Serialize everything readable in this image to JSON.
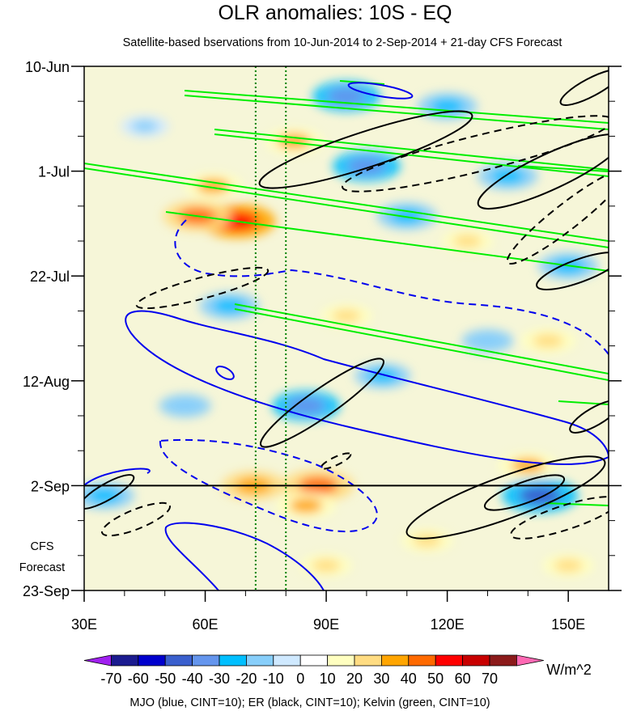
{
  "chart_data": {
    "type": "heatmap",
    "title": "OLR anomalies: 10S - EQ",
    "subtitle": "Satellite-based bservations from 10-Jun-2014 to 2-Sep-2014 + 21-day CFS Forecast",
    "x_ticks": [
      "30E",
      "60E",
      "90E",
      "120E",
      "150E"
    ],
    "x_tick_values": [
      30,
      60,
      90,
      120,
      150
    ],
    "xlim": [
      30,
      160
    ],
    "y_ticks": [
      "10-Jun",
      "1-Jul",
      "22-Jul",
      "12-Aug",
      "2-Sep",
      "23-Sep"
    ],
    "y_tick_days": [
      0,
      21,
      42,
      63,
      84,
      105
    ],
    "observation_end": "2-Sep",
    "observation_end_day": 84,
    "forecast_label_line1": "CFS",
    "forecast_label_line2": "Forecast",
    "reference_longitudes": [
      72.5,
      80
    ],
    "units": "W/m^2",
    "colorbar_values": [
      -70,
      -60,
      -50,
      -40,
      -30,
      -20,
      -10,
      0,
      10,
      20,
      30,
      40,
      50,
      60,
      70
    ],
    "colorbar_labels": [
      "-70",
      "-60",
      "-50",
      "-40",
      "-30",
      "-20",
      "-10",
      "0",
      "10",
      "20",
      "30",
      "40",
      "50",
      "60",
      "70"
    ],
    "colorbar_colors": [
      "#a020f0",
      "#1b1b8f",
      "#0000cd",
      "#3a5fcd",
      "#6495ed",
      "#00bfff",
      "#87cefa",
      "#cfe9ff",
      "#ffffff",
      "#ffffc0",
      "#ffdc82",
      "#ffa500",
      "#ff6a00",
      "#ff0000",
      "#c80000",
      "#8b1a1a",
      "#ff69b4"
    ],
    "footer": "MJO (blue, CINT=10); ER (black, CINT=10); Kelvin (green, CINT=10)",
    "contour_series": [
      {
        "name": "MJO",
        "color": "#0000ff",
        "cint": 10
      },
      {
        "name": "ER",
        "color": "#000000",
        "cint": 10
      },
      {
        "name": "Kelvin",
        "color": "#00ee00",
        "cint": 10
      }
    ],
    "anomaly_features": [
      {
        "lon": 68,
        "day": 31,
        "value": 50
      },
      {
        "lon": 58,
        "day": 30,
        "value": 40
      },
      {
        "lon": 88,
        "day": 84,
        "value": 45
      },
      {
        "lon": 72,
        "day": 84,
        "value": 35
      },
      {
        "lon": 85,
        "day": 88,
        "value": 30
      },
      {
        "lon": 62,
        "day": 24,
        "value": 30
      },
      {
        "lon": 82,
        "day": 15,
        "value": 30
      },
      {
        "lon": 90,
        "day": 100,
        "value": 20
      },
      {
        "lon": 140,
        "day": 80,
        "value": 30
      },
      {
        "lon": 115,
        "day": 95,
        "value": 20
      },
      {
        "lon": 145,
        "day": 55,
        "value": 25
      },
      {
        "lon": 150,
        "day": 100,
        "value": 20
      },
      {
        "lon": 125,
        "day": 35,
        "value": 20
      },
      {
        "lon": 95,
        "day": 50,
        "value": 20
      },
      {
        "lon": 143,
        "day": 86,
        "value": -50
      },
      {
        "lon": 100,
        "day": 20,
        "value": -40
      },
      {
        "lon": 95,
        "day": 6,
        "value": -40
      },
      {
        "lon": 85,
        "day": 68,
        "value": -40
      },
      {
        "lon": 120,
        "day": 8,
        "value": -30
      },
      {
        "lon": 110,
        "day": 30,
        "value": -30
      },
      {
        "lon": 135,
        "day": 22,
        "value": -30
      },
      {
        "lon": 66,
        "day": 48,
        "value": -30
      },
      {
        "lon": 104,
        "day": 62,
        "value": -25
      },
      {
        "lon": 150,
        "day": 40,
        "value": -30
      },
      {
        "lon": 35,
        "day": 86,
        "value": -30
      },
      {
        "lon": 55,
        "day": 68,
        "value": -20
      },
      {
        "lon": 130,
        "day": 55,
        "value": -20
      },
      {
        "lon": 45,
        "day": 12,
        "value": -15
      }
    ]
  }
}
